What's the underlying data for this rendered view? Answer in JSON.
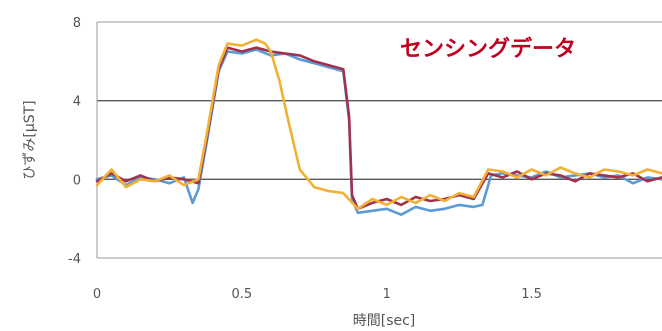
{
  "chart_data": {
    "type": "line",
    "title": "センシングデータ",
    "xlabel": "時間[sec]",
    "ylabel": "ひずみ[μST]",
    "xlim": [
      0,
      1.95
    ],
    "ylim": [
      -4,
      8
    ],
    "xticks": [
      "0",
      "0.5",
      "1",
      "1.5"
    ],
    "xtick_values": [
      0,
      0.5,
      1,
      1.5
    ],
    "yticks": [
      "8",
      "4",
      "0",
      "-4"
    ],
    "ytick_values": [
      8,
      4,
      0,
      -4
    ],
    "grid": "horizontal",
    "legend": "none",
    "colors": {
      "series_blue": "#5b9bd5",
      "series_red": "#a0324e",
      "series_orange": "#f2b035",
      "title": "#c0001e",
      "gridline": "#595959"
    },
    "series": [
      {
        "color": "#5b9bd5",
        "x": [
          0,
          0.05,
          0.1,
          0.15,
          0.2,
          0.25,
          0.3,
          0.33,
          0.35,
          0.38,
          0.42,
          0.45,
          0.5,
          0.55,
          0.6,
          0.65,
          0.7,
          0.75,
          0.8,
          0.85,
          0.87,
          0.88,
          0.9,
          0.95,
          1.0,
          1.05,
          1.1,
          1.15,
          1.2,
          1.25,
          1.3,
          1.33,
          1.36,
          1.4,
          1.45,
          1.5,
          1.55,
          1.6,
          1.65,
          1.7,
          1.75,
          1.8,
          1.85,
          1.9,
          1.95
        ],
        "y": [
          0,
          0.2,
          -0.3,
          0.1,
          0,
          -0.2,
          0.1,
          -1.2,
          -0.5,
          2,
          5.5,
          6.5,
          6.4,
          6.6,
          6.3,
          6.4,
          6.1,
          5.9,
          5.7,
          5.5,
          3,
          -1,
          -1.7,
          -1.6,
          -1.5,
          -1.8,
          -1.4,
          -1.6,
          -1.5,
          -1.3,
          -1.4,
          -1.3,
          0.2,
          0.3,
          0.2,
          0.1,
          0.4,
          0.1,
          0.2,
          0.3,
          0.1,
          0.2,
          -0.2,
          0.1,
          0
        ]
      },
      {
        "color": "#a0324e",
        "x": [
          0,
          0.05,
          0.1,
          0.15,
          0.2,
          0.25,
          0.3,
          0.35,
          0.38,
          0.42,
          0.45,
          0.5,
          0.55,
          0.6,
          0.65,
          0.7,
          0.75,
          0.8,
          0.85,
          0.87,
          0.88,
          0.9,
          0.95,
          1.0,
          1.05,
          1.1,
          1.15,
          1.2,
          1.25,
          1.3,
          1.35,
          1.4,
          1.45,
          1.5,
          1.55,
          1.6,
          1.65,
          1.7,
          1.75,
          1.8,
          1.85,
          1.9,
          1.95
        ],
        "y": [
          -0.1,
          0.3,
          -0.1,
          0.2,
          -0.1,
          0.1,
          0,
          -0.2,
          2.2,
          5.6,
          6.7,
          6.5,
          6.7,
          6.5,
          6.4,
          6.3,
          6.0,
          5.8,
          5.6,
          3.2,
          -0.8,
          -1.5,
          -1.2,
          -1.0,
          -1.3,
          -0.9,
          -1.1,
          -1.0,
          -0.8,
          -1.0,
          0.3,
          0.1,
          0.4,
          0,
          0.3,
          0.2,
          -0.1,
          0.3,
          0.2,
          0.1,
          0.3,
          -0.1,
          0.1
        ]
      },
      {
        "color": "#f2b035",
        "x": [
          0,
          0.05,
          0.1,
          0.15,
          0.2,
          0.25,
          0.3,
          0.35,
          0.38,
          0.42,
          0.45,
          0.5,
          0.55,
          0.58,
          0.6,
          0.63,
          0.66,
          0.7,
          0.75,
          0.8,
          0.85,
          0.9,
          0.95,
          1.0,
          1.05,
          1.1,
          1.15,
          1.2,
          1.25,
          1.3,
          1.35,
          1.4,
          1.45,
          1.5,
          1.55,
          1.6,
          1.65,
          1.7,
          1.75,
          1.8,
          1.85,
          1.9,
          1.95
        ],
        "y": [
          -0.3,
          0.5,
          -0.4,
          0,
          -0.1,
          0.2,
          -0.3,
          0,
          2.4,
          5.8,
          6.9,
          6.8,
          7.1,
          6.9,
          6.5,
          5.0,
          3.0,
          0.5,
          -0.4,
          -0.6,
          -0.7,
          -1.5,
          -1.0,
          -1.3,
          -0.9,
          -1.2,
          -0.8,
          -1.1,
          -0.7,
          -0.9,
          0.5,
          0.4,
          0.1,
          0.5,
          0.2,
          0.6,
          0.3,
          0.1,
          0.5,
          0.4,
          0.2,
          0.5,
          0.3
        ]
      }
    ]
  }
}
